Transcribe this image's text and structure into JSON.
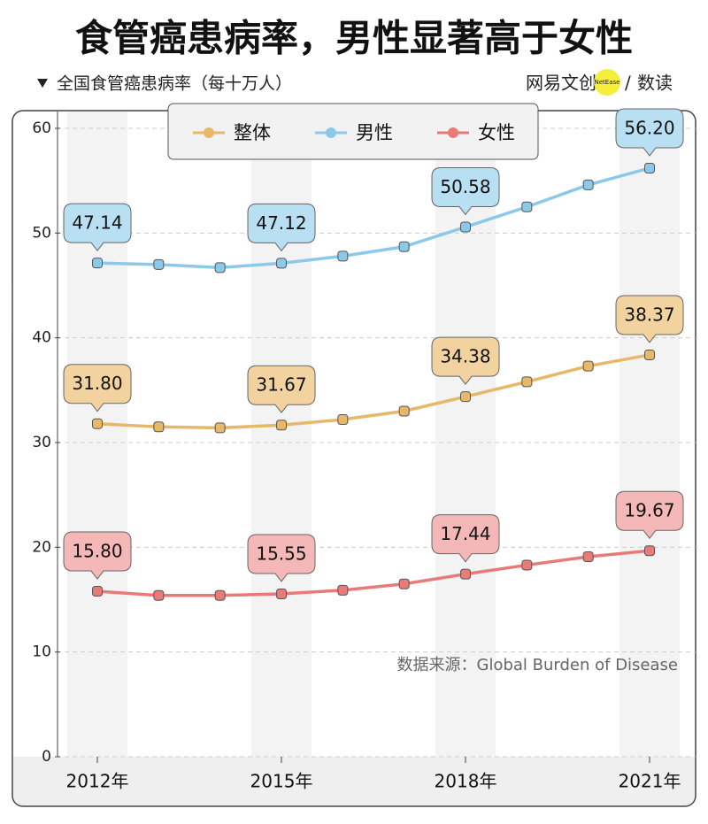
{
  "chart_data": {
    "type": "line",
    "title": "食管癌患病率，男性显著高于女性",
    "subtitle": "全国食管癌患病率（每十万人）",
    "logo_left": "网易文创",
    "logo_badge": "NetEase",
    "logo_right": "数读",
    "source": "数据来源：Global Burden of Disease",
    "categories": [
      "2012年",
      null,
      null,
      "2015年",
      null,
      null,
      "2018年",
      null,
      null,
      "2021年"
    ],
    "series": [
      {
        "name": "整体",
        "color": "#e8b86a",
        "label_color": "#f2d3a0",
        "values": [
          31.8,
          31.5,
          31.4,
          31.67,
          32.2,
          33.0,
          34.38,
          35.8,
          37.3,
          38.37
        ],
        "value_labels": [
          "31.80",
          null,
          null,
          "31.67",
          null,
          null,
          "34.38",
          null,
          null,
          "38.37"
        ]
      },
      {
        "name": "男性",
        "color": "#8cc8e8",
        "label_color": "#b8dff2",
        "values": [
          47.14,
          47.0,
          46.7,
          47.12,
          47.8,
          48.7,
          50.58,
          52.5,
          54.6,
          56.2
        ],
        "value_labels": [
          "47.14",
          null,
          null,
          "47.12",
          null,
          null,
          "50.58",
          null,
          null,
          "56.20"
        ]
      },
      {
        "name": "女性",
        "color": "#e87a78",
        "label_color": "#f5b8b8",
        "values": [
          15.8,
          15.4,
          15.4,
          15.55,
          15.9,
          16.5,
          17.44,
          18.3,
          19.1,
          19.67
        ],
        "value_labels": [
          "15.80",
          null,
          null,
          "15.55",
          null,
          null,
          "17.44",
          null,
          null,
          "19.67"
        ]
      }
    ],
    "ylim": [
      0,
      60
    ],
    "yticks": [
      0,
      10,
      20,
      30,
      40,
      50,
      60
    ],
    "grid": true
  }
}
